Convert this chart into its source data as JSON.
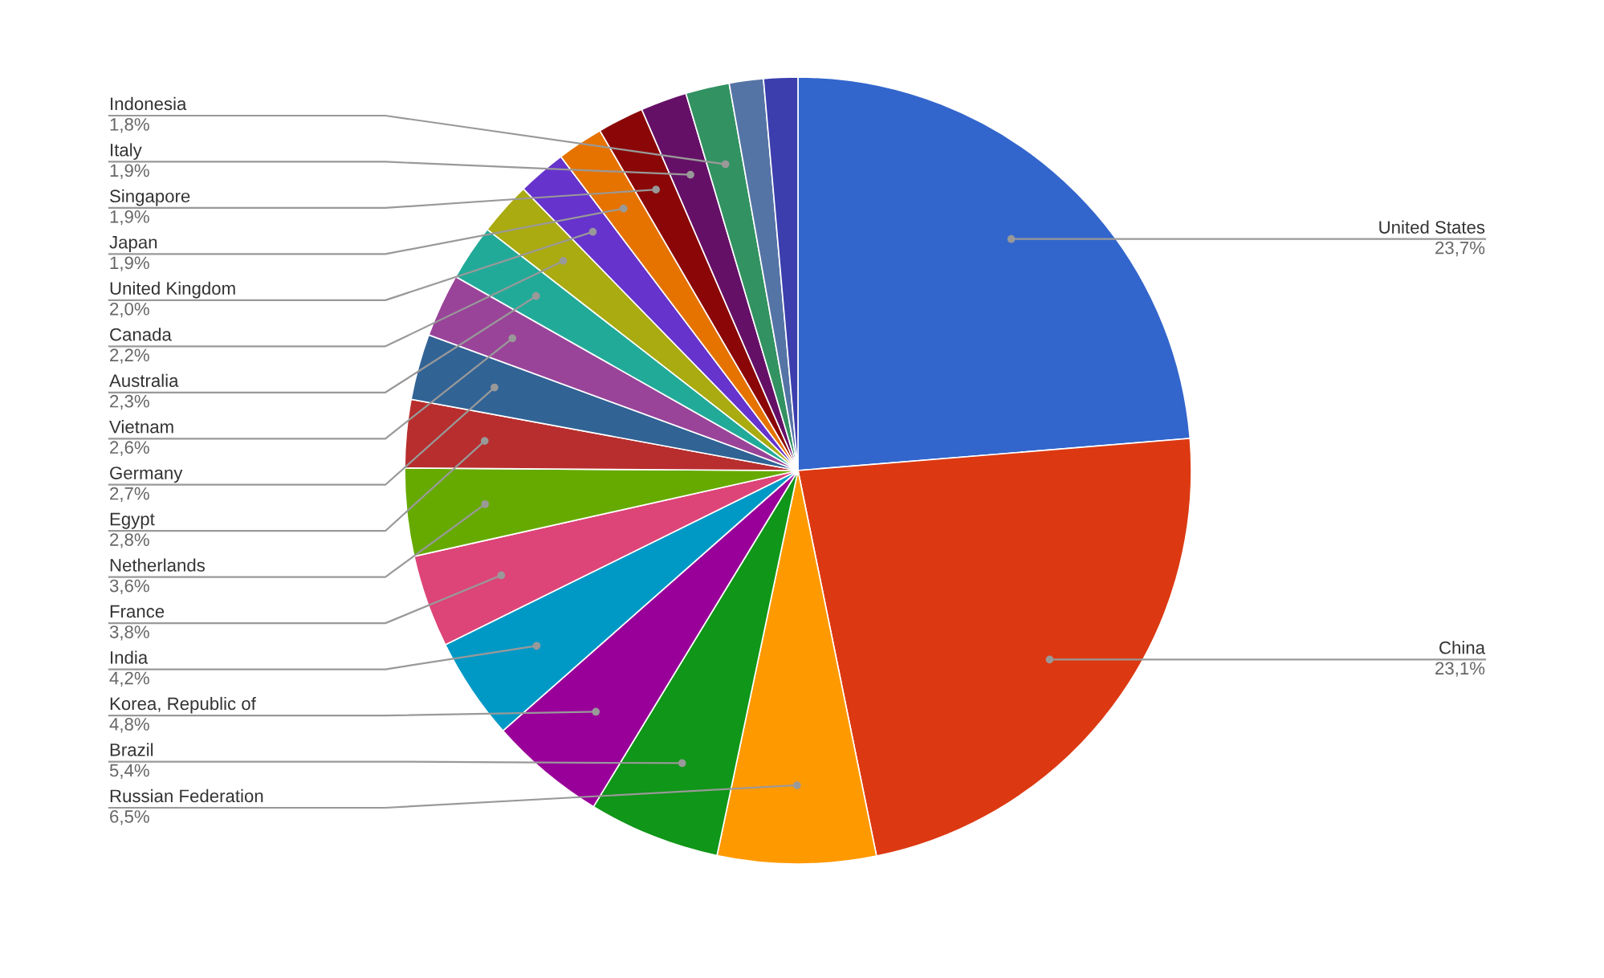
{
  "chart_data": {
    "type": "pie",
    "categories": [
      "United States",
      "China",
      "Russian Federation",
      "Brazil",
      "Korea, Republic of",
      "India",
      "France",
      "Netherlands",
      "Egypt",
      "Germany",
      "Vietnam",
      "Australia",
      "Canada",
      "United Kingdom",
      "Japan",
      "Singapore",
      "Italy",
      "Indonesia",
      null,
      null
    ],
    "values": [
      23.7,
      23.1,
      6.5,
      5.4,
      4.8,
      4.2,
      3.8,
      3.6,
      2.8,
      2.7,
      2.6,
      2.3,
      2.2,
      2.0,
      1.9,
      1.9,
      1.9,
      1.8,
      1.4,
      1.4
    ],
    "value_labels": [
      "23,7%",
      "23,1%",
      "6,5%",
      "5,4%",
      "4,8%",
      "4,2%",
      "3,8%",
      "3,6%",
      "2,8%",
      "2,7%",
      "2,6%",
      "2,3%",
      "2,2%",
      "2,0%",
      "1,9%",
      "1,9%",
      "1,9%",
      "1,8%",
      null,
      null
    ],
    "colors": [
      "#3366cc",
      "#dc3912",
      "#ff9900",
      "#109618",
      "#990099",
      "#0099c6",
      "#dd4477",
      "#66aa00",
      "#b82e2e",
      "#316395",
      "#994499",
      "#22aa99",
      "#aaaa11",
      "#6633cc",
      "#e67300",
      "#8b0707",
      "#651067",
      "#329262",
      "#5574a6",
      "#3b3eac"
    ]
  }
}
